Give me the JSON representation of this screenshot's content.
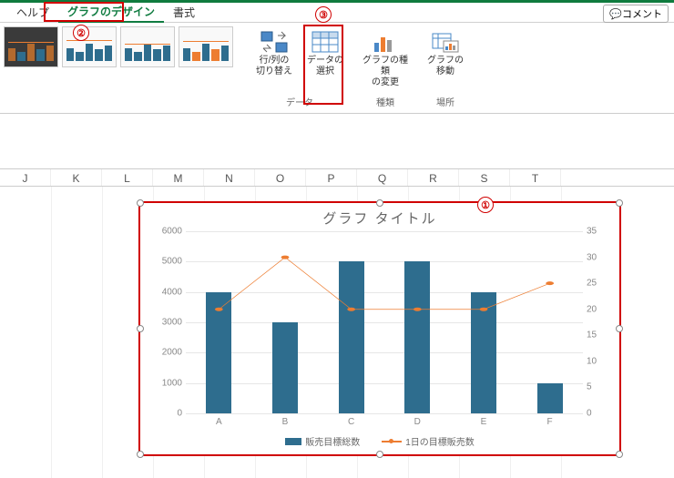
{
  "tabs": {
    "help": "ヘルプ",
    "design": "グラフのデザイン",
    "format": "書式"
  },
  "comment_btn": "コメント",
  "ribbon": {
    "switch_rowcol": "行/列の\n切り替え",
    "select_data": "データの\n選択",
    "change_type": "グラフの種類\nの変更",
    "move_chart": "グラフの\n移動",
    "group_data": "データ",
    "group_type": "種類",
    "group_location": "場所"
  },
  "annotations": {
    "a1": "①",
    "a2": "②",
    "a3": "③"
  },
  "columns": [
    "J",
    "K",
    "L",
    "M",
    "N",
    "O",
    "P",
    "Q",
    "R",
    "S",
    "T"
  ],
  "chart": {
    "title": "グラフ タイトル",
    "categories": [
      "A",
      "B",
      "C",
      "D",
      "E",
      "F"
    ],
    "bar_values": [
      4000,
      3000,
      5000,
      5000,
      4000,
      1000
    ],
    "line_values": [
      20,
      30,
      20,
      20,
      20,
      25
    ],
    "y_left_max": 6000,
    "y_left_step": 1000,
    "y_right_max": 35,
    "y_right_step": 5,
    "bar_color": "#2e6d8e",
    "line_color": "#ed7d31",
    "grid_color": "#e6e6e6",
    "legend_bar": "販売目標総数",
    "legend_line": "1日の目標販売数"
  }
}
